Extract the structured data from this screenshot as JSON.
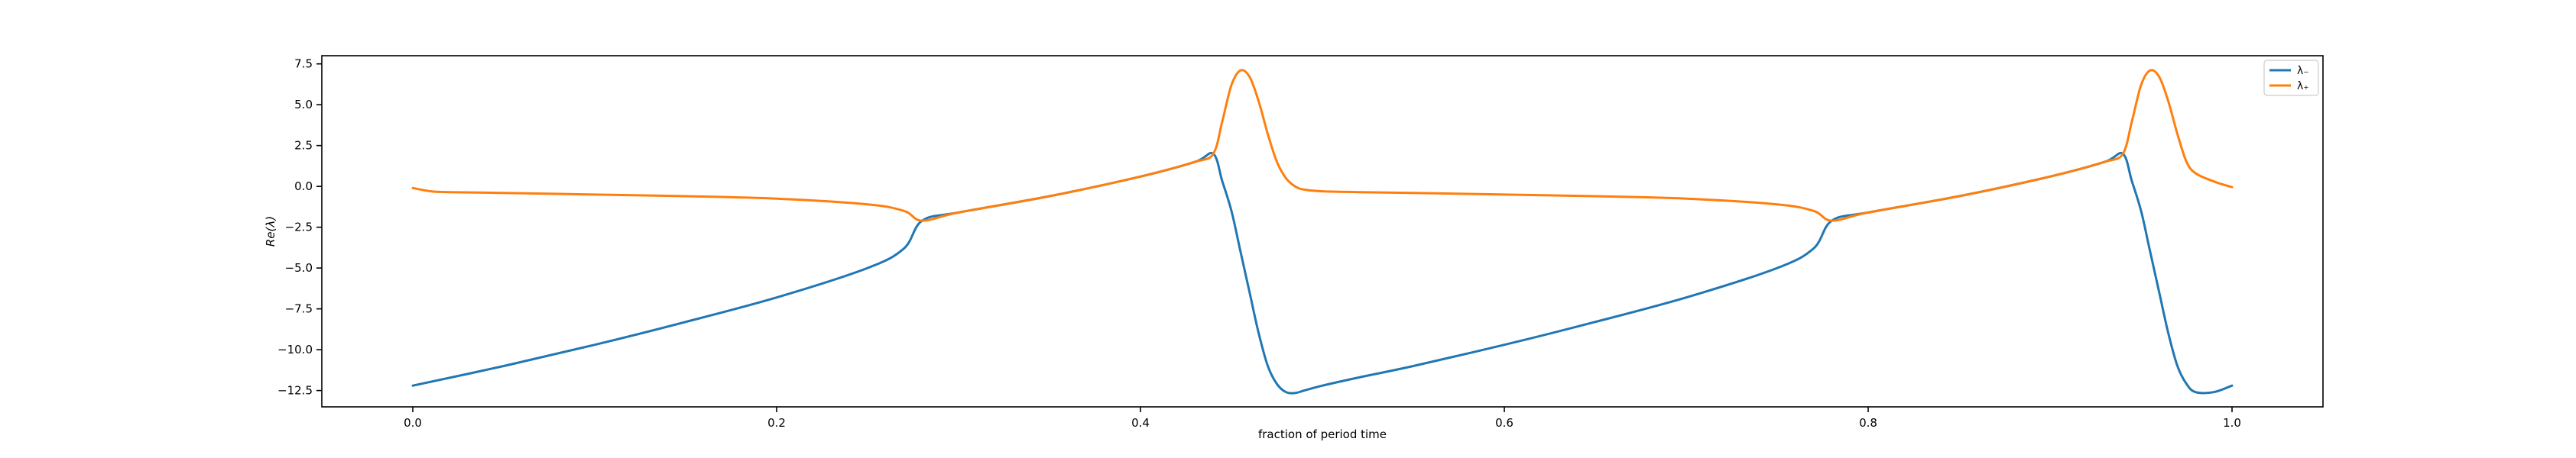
{
  "chart_data": {
    "type": "line",
    "title": "",
    "xlabel": "fraction of period time",
    "ylabel": "Re(λ)",
    "xlim": [
      -0.05,
      1.05
    ],
    "ylim": [
      -13.5,
      8.0
    ],
    "xticks": [
      0.0,
      0.2,
      0.4,
      0.6,
      0.8,
      1.0
    ],
    "xtick_labels": [
      "0.0",
      "0.2",
      "0.4",
      "0.6",
      "0.8",
      "1.0"
    ],
    "yticks": [
      7.5,
      5.0,
      2.5,
      0.0,
      -2.5,
      -5.0,
      -7.5,
      -10.0,
      -12.5
    ],
    "ytick_labels": [
      "7.5",
      "5.0",
      "2.5",
      "0.0",
      "−2.5",
      "−5.0",
      "−7.5",
      "−10.0",
      "−12.5"
    ],
    "grid": false,
    "legend_position": "top-right",
    "series": [
      {
        "name": "λ₋",
        "color": "#1f77b4",
        "x": [
          0.0,
          0.05,
          0.1,
          0.15,
          0.2,
          0.25,
          0.27,
          0.28,
          0.3,
          0.35,
          0.4,
          0.43,
          0.44,
          0.445,
          0.45,
          0.455,
          0.46,
          0.465,
          0.47,
          0.475,
          0.48,
          0.485,
          0.49,
          0.5,
          0.52,
          0.55,
          0.6,
          0.65,
          0.7,
          0.75,
          0.77,
          0.78,
          0.8,
          0.85,
          0.9,
          0.93,
          0.94,
          0.945,
          0.95,
          0.955,
          0.96,
          0.965,
          0.97,
          0.975,
          0.98,
          0.99,
          1.0
        ],
        "y": [
          -12.2,
          -11.0,
          -9.7,
          -8.3,
          -6.8,
          -5.0,
          -3.8,
          -2.1,
          -1.6,
          -0.6,
          0.6,
          1.5,
          2.0,
          0.3,
          -1.5,
          -4.0,
          -6.5,
          -9.0,
          -11.0,
          -12.1,
          -12.6,
          -12.65,
          -12.5,
          -12.2,
          -11.7,
          -11.0,
          -9.7,
          -8.3,
          -6.8,
          -5.0,
          -3.8,
          -2.1,
          -1.6,
          -0.6,
          0.6,
          1.5,
          2.0,
          0.3,
          -1.5,
          -4.0,
          -6.5,
          -9.0,
          -11.0,
          -12.1,
          -12.6,
          -12.6,
          -12.2
        ]
      },
      {
        "name": "λ₊",
        "color": "#ff7f0e",
        "x": [
          0.0,
          0.01,
          0.02,
          0.05,
          0.1,
          0.15,
          0.2,
          0.25,
          0.27,
          0.28,
          0.3,
          0.35,
          0.4,
          0.43,
          0.44,
          0.445,
          0.45,
          0.455,
          0.46,
          0.465,
          0.47,
          0.475,
          0.48,
          0.485,
          0.49,
          0.5,
          0.52,
          0.55,
          0.6,
          0.65,
          0.7,
          0.75,
          0.77,
          0.78,
          0.8,
          0.85,
          0.9,
          0.93,
          0.94,
          0.945,
          0.95,
          0.955,
          0.96,
          0.965,
          0.97,
          0.975,
          0.98,
          0.99,
          1.0
        ],
        "y": [
          -0.1,
          -0.3,
          -0.35,
          -0.4,
          -0.5,
          -0.6,
          -0.75,
          -1.1,
          -1.5,
          -2.1,
          -1.6,
          -0.6,
          0.6,
          1.5,
          2.0,
          4.0,
          6.2,
          7.1,
          6.7,
          5.2,
          3.2,
          1.5,
          0.5,
          0.0,
          -0.2,
          -0.3,
          -0.35,
          -0.4,
          -0.5,
          -0.6,
          -0.75,
          -1.1,
          -1.5,
          -2.1,
          -1.6,
          -0.6,
          0.6,
          1.5,
          2.0,
          4.0,
          6.2,
          7.1,
          6.7,
          5.2,
          3.2,
          1.5,
          0.8,
          0.3,
          -0.05
        ]
      }
    ]
  }
}
